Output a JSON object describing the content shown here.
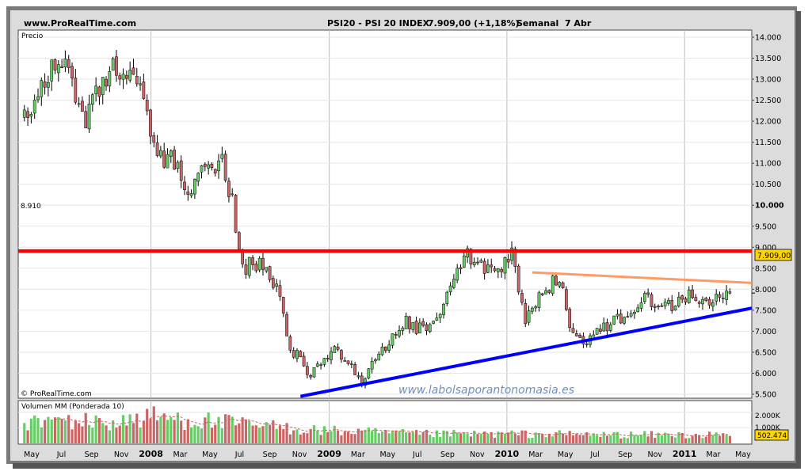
{
  "header": {
    "site": "www.ProRealTime.com",
    "instrument": "PSI20 - PSI 20 INDEX",
    "last": "7.909,00 (+1,18%)",
    "period": "Semanal  7 Abr"
  },
  "price_panel": {
    "label": "Precio",
    "copyright": "© ProRealTime.com",
    "watermark": "www.labolsaporantonomasia.es",
    "level_label": "8.910",
    "last_price_label": "7.909,00",
    "y_ticks": [
      "14.000",
      "13.500",
      "13.000",
      "12.500",
      "12.000",
      "11.500",
      "11.000",
      "10.500",
      "10.000",
      "9.500",
      "9.000",
      "8.500",
      "8.000",
      "7.500",
      "7.000",
      "6.500",
      "6.000",
      "5.500"
    ]
  },
  "volume_panel": {
    "label": "Volumen MM (Ponderada 10)",
    "y_ticks": [
      "2.000K",
      "1.000K"
    ],
    "last_volume_label": "502.474"
  },
  "x_axis": {
    "labels": [
      "May",
      "Jul",
      "Sep",
      "Nov",
      "2008",
      "Mar",
      "May",
      "Jul",
      "Sep",
      "Nov",
      "2009",
      "Mar",
      "May",
      "Jul",
      "Sep",
      "Nov",
      "2010",
      "Mar",
      "May",
      "Jul",
      "Sep",
      "Nov",
      "2011",
      "Mar",
      "May"
    ],
    "bold_labels": [
      "2008",
      "2009",
      "2010",
      "2011"
    ]
  },
  "colors": {
    "up_candle": "#66cc66",
    "down_candle": "#cc6666",
    "resistance_line": "#ff0000",
    "upper_trendline": "#ff9966",
    "support_trendline": "#0000ff",
    "last_price_box": "#ffd700"
  },
  "chart_data": [
    {
      "type": "candlestick",
      "title": "PSI20 - PSI 20 INDEX",
      "timeframe": "weekly",
      "ylim": [
        5400,
        14200
      ],
      "close_path": [
        [
          "2007-04-16",
          12100
        ],
        [
          "2007-05-07",
          12500
        ],
        [
          "2007-06-04",
          13200
        ],
        [
          "2007-07-09",
          13650
        ],
        [
          "2007-07-30",
          12600
        ],
        [
          "2007-08-20",
          12000
        ],
        [
          "2007-09-10",
          12700
        ],
        [
          "2007-10-15",
          13200
        ],
        [
          "2007-11-12",
          13000
        ],
        [
          "2007-12-10",
          13100
        ],
        [
          "2008-01-14",
          11000
        ],
        [
          "2008-02-11",
          11300
        ],
        [
          "2008-03-17",
          10200
        ],
        [
          "2008-04-14",
          11000
        ],
        [
          "2008-05-26",
          11000
        ],
        [
          "2008-06-16",
          10100
        ],
        [
          "2008-07-07",
          8500
        ],
        [
          "2008-07-28",
          8600
        ],
        [
          "2008-08-25",
          8500
        ],
        [
          "2008-09-22",
          7800
        ],
        [
          "2008-10-13",
          6500
        ],
        [
          "2008-11-03",
          6400
        ],
        [
          "2008-11-24",
          5900
        ],
        [
          "2008-12-15",
          6300
        ],
        [
          "2009-01-12",
          6500
        ],
        [
          "2009-02-09",
          6300
        ],
        [
          "2009-03-09",
          5800
        ],
        [
          "2009-04-06",
          6300
        ],
        [
          "2009-05-04",
          6700
        ],
        [
          "2009-06-08",
          7200
        ],
        [
          "2009-07-13",
          7000
        ],
        [
          "2009-08-10",
          7300
        ],
        [
          "2009-09-14",
          8200
        ],
        [
          "2009-10-12",
          8800
        ],
        [
          "2009-11-09",
          8500
        ],
        [
          "2009-12-14",
          8500
        ],
        [
          "2010-01-11",
          8900
        ],
        [
          "2010-02-08",
          7300
        ],
        [
          "2010-03-15",
          7900
        ],
        [
          "2010-04-19",
          8300
        ],
        [
          "2010-05-10",
          7000
        ],
        [
          "2010-06-07",
          6800
        ],
        [
          "2010-07-12",
          7000
        ],
        [
          "2010-08-09",
          7300
        ],
        [
          "2010-09-13",
          7300
        ],
        [
          "2010-10-11",
          7800
        ],
        [
          "2010-11-08",
          7700
        ],
        [
          "2010-12-06",
          7600
        ],
        [
          "2011-01-10",
          7900
        ],
        [
          "2011-02-07",
          7700
        ],
        [
          "2011-03-14",
          7900
        ],
        [
          "2011-04-04",
          7909
        ]
      ],
      "horizontal_level": 8910,
      "last_price": 7909,
      "change_pct": 1.18,
      "upper_trendline": [
        [
          "2010-02-22",
          8400
        ],
        [
          "2011-05-23",
          8150
        ]
      ],
      "support_trendline": [
        [
          "2008-11-03",
          5450
        ],
        [
          "2011-05-23",
          7550
        ]
      ]
    },
    {
      "type": "bar",
      "title": "Volumen MM (Ponderada 10)",
      "ylim": [
        0,
        2600000
      ],
      "last_value": 502474,
      "volume_path": [
        [
          "2007-04-16",
          1300000
        ],
        [
          "2007-07-02",
          1500000
        ],
        [
          "2007-10-01",
          1300000
        ],
        [
          "2008-01-07",
          1700000
        ],
        [
          "2008-04-07",
          1500000
        ],
        [
          "2008-07-07",
          1200000
        ],
        [
          "2008-10-06",
          1000000
        ],
        [
          "2009-01-05",
          800000
        ],
        [
          "2009-04-06",
          700000
        ],
        [
          "2009-07-06",
          600000
        ],
        [
          "2009-10-05",
          600000
        ],
        [
          "2010-01-04",
          600000
        ],
        [
          "2010-04-05",
          600000
        ],
        [
          "2010-07-05",
          550000
        ],
        [
          "2010-10-04",
          550000
        ],
        [
          "2011-01-03",
          550000
        ],
        [
          "2011-04-04",
          500000
        ]
      ]
    }
  ]
}
